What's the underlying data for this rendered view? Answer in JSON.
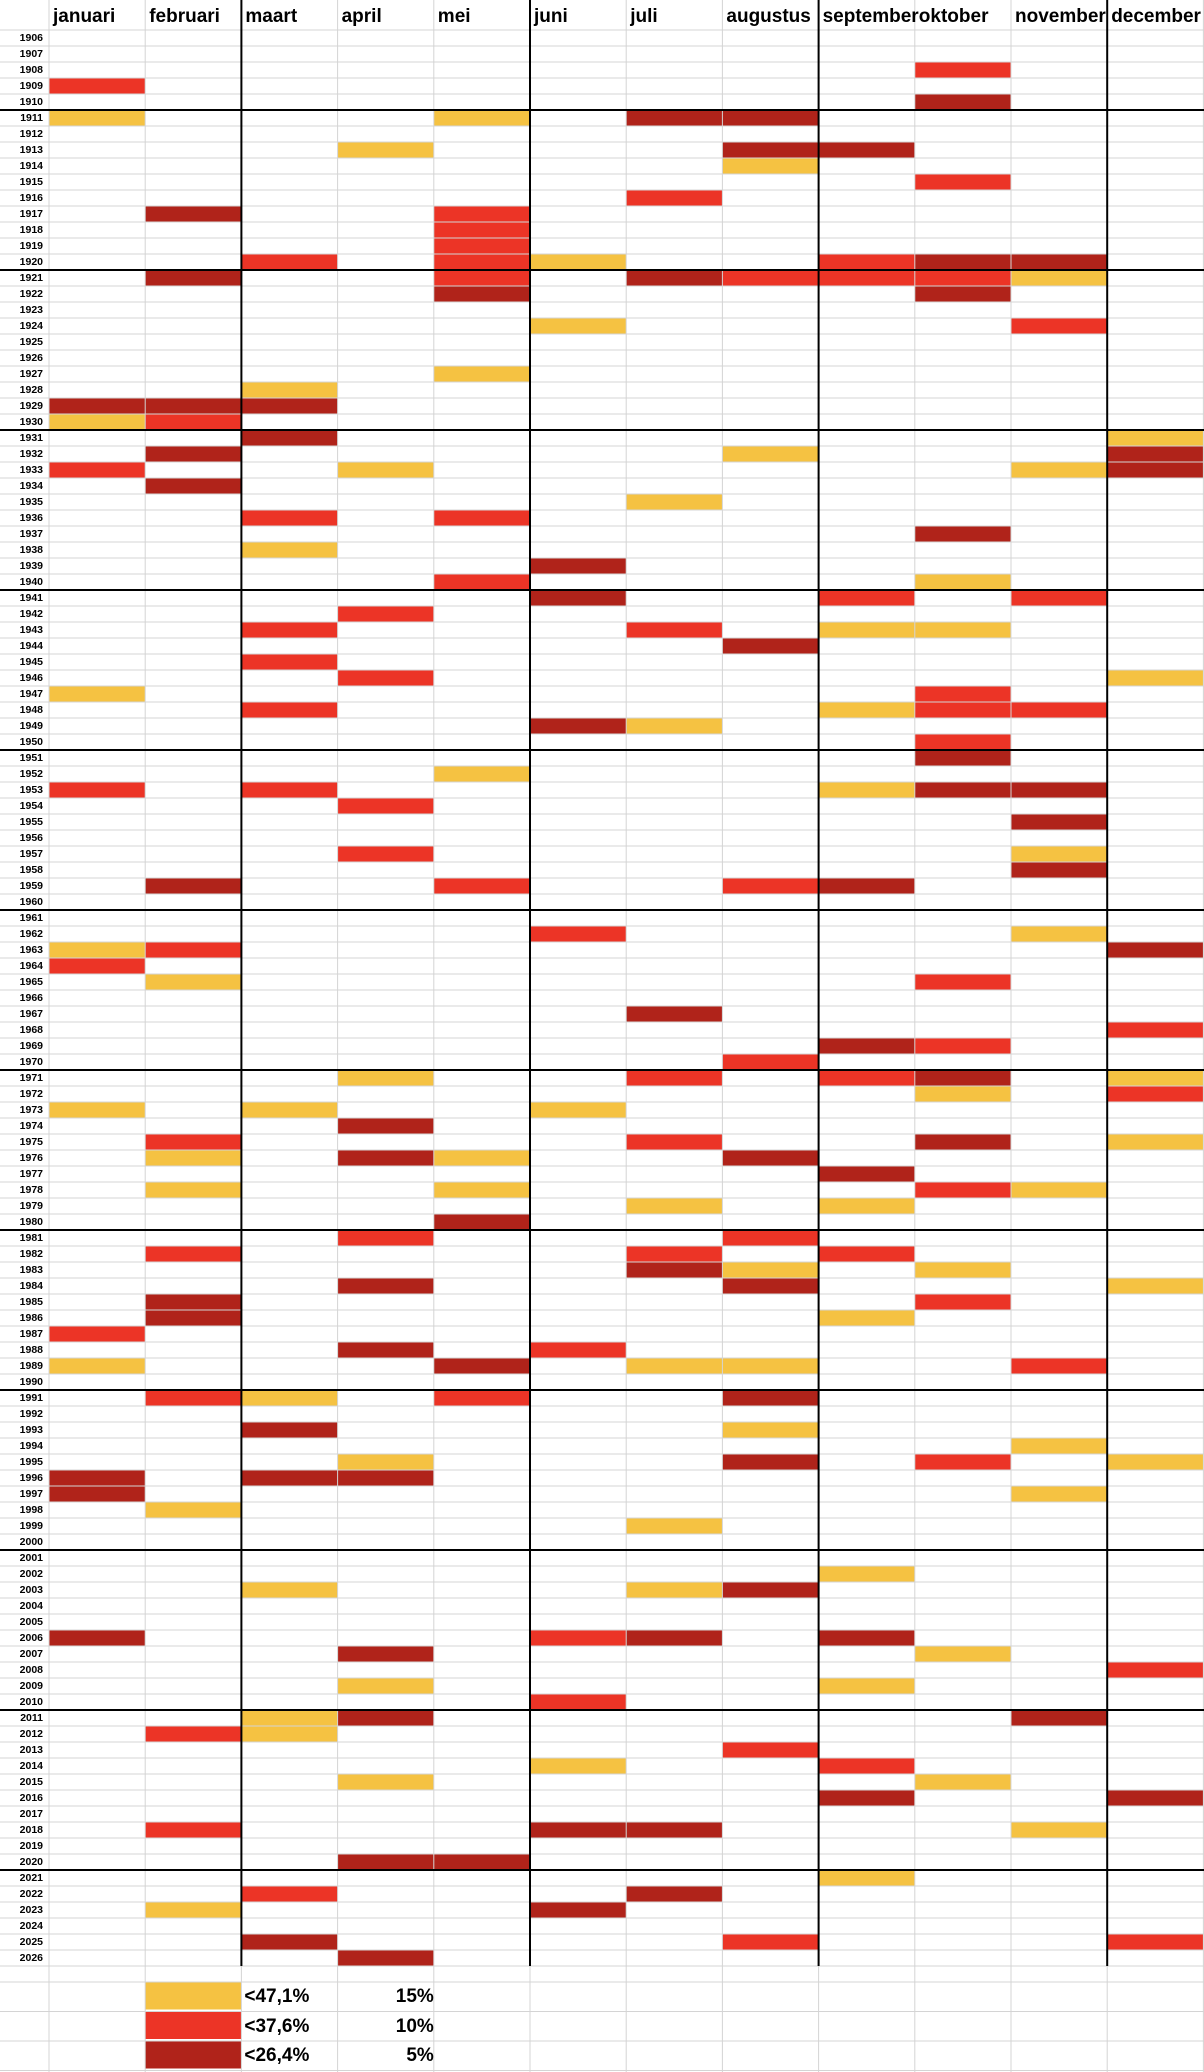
{
  "months": [
    "januari",
    "februari",
    "maart",
    "april",
    "mei",
    "juni",
    "juli",
    "augustus",
    "september",
    "oktober",
    "november",
    "december"
  ],
  "years_first": 1906,
  "years_last": 2026,
  "colors": {
    "yellow": "#F5C242",
    "red": "#EC3426",
    "dark": "#B0231A"
  },
  "legend": [
    {
      "level": "yellow",
      "threshold": "<47,1%",
      "percent": "15%"
    },
    {
      "level": "red",
      "threshold": "<37,6%",
      "percent": "10%"
    },
    {
      "level": "dark",
      "threshold": "<26,4%",
      "percent": "5%"
    }
  ],
  "marks": {
    "yellow": [
      [
        1911,
        1
      ],
      [
        1911,
        5
      ],
      [
        1913,
        4
      ],
      [
        1914,
        8
      ],
      [
        1920,
        6
      ],
      [
        1921,
        11
      ],
      [
        1924,
        6
      ],
      [
        1927,
        5
      ],
      [
        1928,
        3
      ],
      [
        1930,
        1
      ],
      [
        1931,
        12
      ],
      [
        1932,
        8
      ],
      [
        1933,
        4
      ],
      [
        1933,
        11
      ],
      [
        1935,
        7
      ],
      [
        1938,
        3
      ],
      [
        1940,
        10
      ],
      [
        1943,
        9
      ],
      [
        1943,
        10
      ],
      [
        1946,
        12
      ],
      [
        1947,
        1
      ],
      [
        1948,
        9
      ],
      [
        1949,
        7
      ],
      [
        1952,
        5
      ],
      [
        1953,
        9
      ],
      [
        1957,
        11
      ],
      [
        1962,
        11
      ],
      [
        1963,
        1
      ],
      [
        1965,
        2
      ],
      [
        1971,
        4
      ],
      [
        1971,
        12
      ],
      [
        1972,
        10
      ],
      [
        1973,
        1
      ],
      [
        1973,
        3
      ],
      [
        1973,
        6
      ],
      [
        1975,
        12
      ],
      [
        1976,
        2
      ],
      [
        1976,
        5
      ],
      [
        1978,
        2
      ],
      [
        1978,
        5
      ],
      [
        1978,
        11
      ],
      [
        1979,
        7
      ],
      [
        1979,
        9
      ],
      [
        1983,
        8
      ],
      [
        1983,
        10
      ],
      [
        1984,
        12
      ],
      [
        1986,
        9
      ],
      [
        1989,
        1
      ],
      [
        1989,
        7
      ],
      [
        1989,
        8
      ],
      [
        1991,
        3
      ],
      [
        1993,
        8
      ],
      [
        1994,
        11
      ],
      [
        1995,
        4
      ],
      [
        1995,
        12
      ],
      [
        1997,
        11
      ],
      [
        1998,
        2
      ],
      [
        1999,
        7
      ],
      [
        2002,
        9
      ],
      [
        2003,
        3
      ],
      [
        2003,
        7
      ],
      [
        2007,
        10
      ],
      [
        2009,
        4
      ],
      [
        2009,
        9
      ],
      [
        2011,
        3
      ],
      [
        2012,
        3
      ],
      [
        2014,
        6
      ],
      [
        2015,
        4
      ],
      [
        2015,
        10
      ],
      [
        2018,
        11
      ],
      [
        2021,
        9
      ],
      [
        2023,
        2
      ]
    ],
    "red": [
      [
        1908,
        10
      ],
      [
        1909,
        1
      ],
      [
        1915,
        10
      ],
      [
        1916,
        7
      ],
      [
        1917,
        5
      ],
      [
        1918,
        5
      ],
      [
        1919,
        5
      ],
      [
        1920,
        3
      ],
      [
        1920,
        5
      ],
      [
        1920,
        9
      ],
      [
        1921,
        5
      ],
      [
        1921,
        8
      ],
      [
        1921,
        9
      ],
      [
        1921,
        10
      ],
      [
        1924,
        11
      ],
      [
        1930,
        2
      ],
      [
        1933,
        1
      ],
      [
        1936,
        3
      ],
      [
        1936,
        5
      ],
      [
        1940,
        5
      ],
      [
        1941,
        9
      ],
      [
        1941,
        11
      ],
      [
        1942,
        4
      ],
      [
        1943,
        3
      ],
      [
        1943,
        7
      ],
      [
        1945,
        3
      ],
      [
        1946,
        4
      ],
      [
        1947,
        10
      ],
      [
        1948,
        3
      ],
      [
        1948,
        10
      ],
      [
        1948,
        11
      ],
      [
        1950,
        10
      ],
      [
        1953,
        1
      ],
      [
        1953,
        3
      ],
      [
        1954,
        4
      ],
      [
        1957,
        4
      ],
      [
        1959,
        5
      ],
      [
        1959,
        8
      ],
      [
        1962,
        6
      ],
      [
        1963,
        2
      ],
      [
        1964,
        1
      ],
      [
        1965,
        10
      ],
      [
        1968,
        12
      ],
      [
        1969,
        10
      ],
      [
        1970,
        8
      ],
      [
        1971,
        7
      ],
      [
        1971,
        9
      ],
      [
        1972,
        12
      ],
      [
        1975,
        2
      ],
      [
        1975,
        7
      ],
      [
        1978,
        10
      ],
      [
        1981,
        4
      ],
      [
        1981,
        8
      ],
      [
        1982,
        2
      ],
      [
        1982,
        7
      ],
      [
        1982,
        9
      ],
      [
        1985,
        10
      ],
      [
        1987,
        1
      ],
      [
        1988,
        6
      ],
      [
        1989,
        11
      ],
      [
        1991,
        2
      ],
      [
        1991,
        5
      ],
      [
        1995,
        10
      ],
      [
        2006,
        6
      ],
      [
        2008,
        12
      ],
      [
        2010,
        6
      ],
      [
        2012,
        2
      ],
      [
        2013,
        8
      ],
      [
        2014,
        9
      ],
      [
        2018,
        2
      ],
      [
        2022,
        3
      ],
      [
        2025,
        8
      ],
      [
        2025,
        12
      ]
    ],
    "dark": [
      [
        1910,
        10
      ],
      [
        1911,
        7
      ],
      [
        1911,
        8
      ],
      [
        1913,
        8
      ],
      [
        1913,
        9
      ],
      [
        1917,
        2
      ],
      [
        1920,
        10
      ],
      [
        1920,
        11
      ],
      [
        1921,
        2
      ],
      [
        1921,
        7
      ],
      [
        1922,
        5
      ],
      [
        1922,
        10
      ],
      [
        1929,
        1
      ],
      [
        1929,
        2
      ],
      [
        1929,
        3
      ],
      [
        1931,
        3
      ],
      [
        1932,
        2
      ],
      [
        1932,
        12
      ],
      [
        1933,
        12
      ],
      [
        1934,
        2
      ],
      [
        1937,
        10
      ],
      [
        1939,
        6
      ],
      [
        1941,
        6
      ],
      [
        1944,
        8
      ],
      [
        1949,
        6
      ],
      [
        1951,
        10
      ],
      [
        1953,
        10
      ],
      [
        1953,
        11
      ],
      [
        1955,
        11
      ],
      [
        1958,
        11
      ],
      [
        1959,
        2
      ],
      [
        1959,
        9
      ],
      [
        1963,
        12
      ],
      [
        1967,
        7
      ],
      [
        1969,
        9
      ],
      [
        1971,
        10
      ],
      [
        1974,
        4
      ],
      [
        1975,
        10
      ],
      [
        1976,
        4
      ],
      [
        1976,
        8
      ],
      [
        1977,
        9
      ],
      [
        1980,
        5
      ],
      [
        1983,
        7
      ],
      [
        1984,
        4
      ],
      [
        1984,
        8
      ],
      [
        1985,
        2
      ],
      [
        1986,
        2
      ],
      [
        1988,
        4
      ],
      [
        1989,
        5
      ],
      [
        1991,
        8
      ],
      [
        1993,
        3
      ],
      [
        1995,
        8
      ],
      [
        1996,
        1
      ],
      [
        1996,
        3
      ],
      [
        1996,
        4
      ],
      [
        1997,
        1
      ],
      [
        2003,
        8
      ],
      [
        2006,
        1
      ],
      [
        2006,
        7
      ],
      [
        2006,
        9
      ],
      [
        2007,
        4
      ],
      [
        2011,
        4
      ],
      [
        2011,
        11
      ],
      [
        2016,
        9
      ],
      [
        2016,
        12
      ],
      [
        2018,
        6
      ],
      [
        2018,
        7
      ],
      [
        2020,
        4
      ],
      [
        2020,
        5
      ],
      [
        2022,
        7
      ],
      [
        2023,
        6
      ],
      [
        2025,
        3
      ],
      [
        2026,
        4
      ]
    ]
  }
}
